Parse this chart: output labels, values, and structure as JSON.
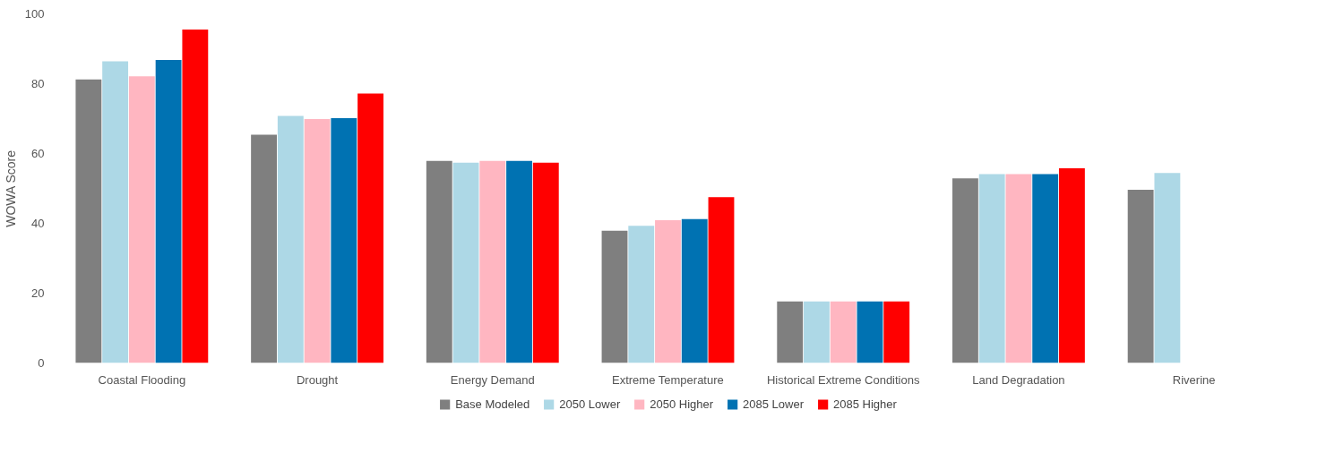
{
  "chart_data": {
    "type": "bar",
    "ylabel": "WOWA Score",
    "categories": [
      "Coastal Flooding",
      "Drought",
      "Energy Demand",
      "Extreme Temperature",
      "Historical Extreme Conditions",
      "Land Degradation",
      "Riverine"
    ],
    "series": [
      {
        "name": "Base Modeled",
        "color": "#7f7f7f",
        "values": [
          81.2,
          65.4,
          57.9,
          37.9,
          17.6,
          52.9,
          49.6
        ]
      },
      {
        "name": "2050 Lower",
        "color": "#add8e6",
        "values": [
          86.4,
          70.8,
          57.4,
          39.3,
          17.6,
          54.1,
          54.4
        ]
      },
      {
        "name": "2050 Higher",
        "color": "#ffb6c1",
        "values": [
          82.1,
          69.9,
          57.9,
          40.9,
          17.6,
          54.1,
          null
        ]
      },
      {
        "name": "2085 Lower",
        "color": "#0072b2",
        "values": [
          86.8,
          70.1,
          57.9,
          41.2,
          17.6,
          54.1,
          null
        ]
      },
      {
        "name": "2085 Higher",
        "color": "#ff0000",
        "values": [
          95.5,
          77.2,
          57.4,
          47.5,
          17.6,
          55.8,
          null
        ]
      }
    ],
    "ylim": [
      0,
      100
    ],
    "yticks": [
      0,
      20,
      40,
      60,
      80,
      100
    ],
    "grid": false,
    "legend": "bottom"
  }
}
